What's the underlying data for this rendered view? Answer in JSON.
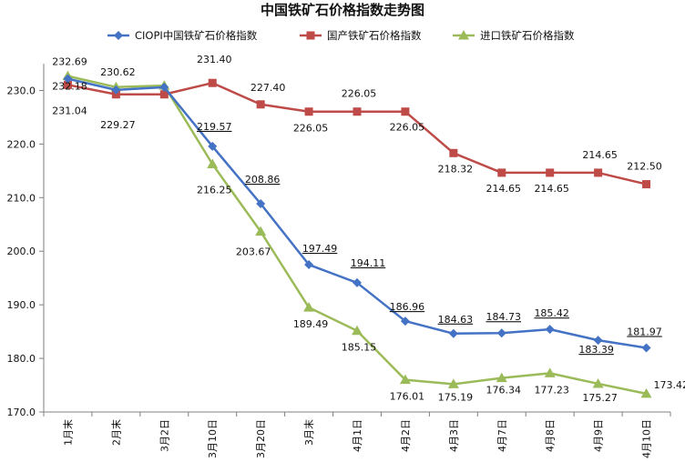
{
  "chart_data": {
    "type": "line",
    "title": "中国铁矿石价格指数走势图",
    "categories": [
      "1月末",
      "2月末",
      "3月2日",
      "3月10日",
      "3月20日",
      "3月末",
      "4月1日",
      "4月2日",
      "4月3日",
      "4月7日",
      "4月8日",
      "4月9日",
      "4月10日"
    ],
    "ylim": [
      170,
      235
    ],
    "yticks": [
      "170.0",
      "180.0",
      "190.0",
      "200.0",
      "210.0",
      "220.0",
      "230.0"
    ],
    "grid": false,
    "legend_position": "top",
    "series": [
      {
        "name": "CIOPI中国铁矿石价格指数",
        "color": "#4472C4",
        "marker": "diamond",
        "values": [
          232.18,
          230.1,
          230.6,
          219.57,
          208.86,
          197.49,
          194.11,
          186.96,
          184.63,
          184.73,
          185.42,
          183.39,
          181.97
        ],
        "labels": [
          "232.18",
          "",
          "",
          "219.57",
          "208.86",
          "197.49",
          "194.11",
          "186.96",
          "184.63",
          "184.73",
          "185.42",
          "183.39",
          "181.97"
        ]
      },
      {
        "name": "国产铁矿石价格指数",
        "color": "#BE4B48",
        "marker": "square",
        "values": [
          231.04,
          229.27,
          229.27,
          231.4,
          227.4,
          226.05,
          226.05,
          226.05,
          218.32,
          214.65,
          214.65,
          214.65,
          212.5
        ],
        "labels": [
          "231.04",
          "229.27",
          "",
          "231.40",
          "227.40",
          "226.05",
          "226.05",
          "226.05",
          "218.32",
          "214.65",
          "214.65",
          "214.65",
          "212.50"
        ]
      },
      {
        "name": "进口铁矿石价格指数",
        "color": "#9BBB59",
        "marker": "triangle",
        "values": [
          232.69,
          230.62,
          230.9,
          216.25,
          203.67,
          189.49,
          185.15,
          176.01,
          175.19,
          176.34,
          177.23,
          175.27,
          173.42
        ],
        "labels": [
          "232.69",
          "230.62",
          "",
          "216.25",
          "203.67",
          "189.49",
          "185.15",
          "176.01",
          "175.19",
          "176.34",
          "177.23",
          "175.27",
          "173.42"
        ]
      }
    ]
  }
}
